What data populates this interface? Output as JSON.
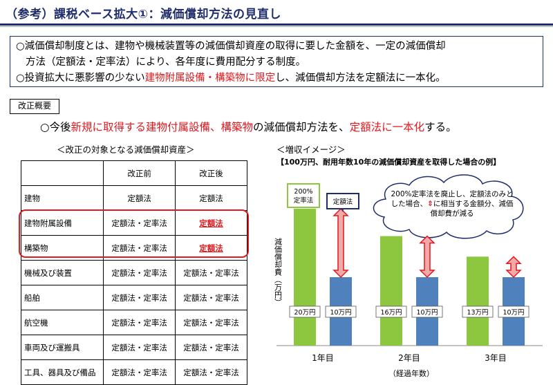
{
  "title": "（参考）課税ベース拡大①：減価償却方法の見直し",
  "summary": {
    "line1": "○減価償却制度とは、建物や機械装置等の減価償却資産の取得に要した金額を、一定の減価償却",
    "line2": "方法（定額法・定率法）により、各年度に費用配分する制度。",
    "line3_pre": "○投資拡大に悪影響の少ない",
    "line3_red": "建物附属設備・構築物に限定",
    "line3_post": "し、減価償却方法を定額法に一本化。"
  },
  "kaisei_label": "改正概要",
  "bigline": {
    "p1": "○今後",
    "p2": "新規に取得する建物付属設備、構築物",
    "p3": "の減価償却方法を、",
    "p4": "定額法に一本化",
    "p5": "する。"
  },
  "table": {
    "caption": "＜改正の対象となる減価償却資産＞",
    "headers": [
      "",
      "改正前",
      "改正後"
    ],
    "rows": [
      {
        "name": "建物",
        "before": "定額法",
        "after": "定額法",
        "changed": false
      },
      {
        "name": "建物附属設備",
        "before": "定額法・定率法",
        "after": "定額法",
        "changed": true
      },
      {
        "name": "構築物",
        "before": "定額法・定率法",
        "after": "定額法",
        "changed": true
      },
      {
        "name": "機械及び装置",
        "before": "定額法・定率法",
        "after": "定額法・定率法",
        "changed": false
      },
      {
        "name": "船舶",
        "before": "定額法・定率法",
        "after": "定額法・定率法",
        "changed": false
      },
      {
        "name": "航空機",
        "before": "定額法・定率法",
        "after": "定額法・定率法",
        "changed": false
      },
      {
        "name": "車両及び運搬具",
        "before": "定額法・定率法",
        "after": "定額法・定率法",
        "changed": false
      },
      {
        "name": "工具、器具及び備品",
        "before": "定額法・定率法",
        "after": "定額法・定率法",
        "changed": false
      }
    ]
  },
  "chart_data": {
    "type": "bar",
    "title": "＜増収イメージ＞",
    "subtitle": "【100万円、耐用年数10年の減価償却資産を取得した場合の例】",
    "ylabel": "減価償却費（万円）",
    "xlabel": "（経過年数）",
    "categories": [
      "1年目",
      "2年目",
      "3年目"
    ],
    "series": [
      {
        "name": "200%定率法",
        "color": "#8dc63f",
        "values": [
          20,
          16,
          13
        ],
        "labels": [
          "20万円",
          "16万円",
          "13万円"
        ]
      },
      {
        "name": "定額法",
        "color": "#4f81bd",
        "values": [
          10,
          10,
          10
        ],
        "labels": [
          "10万円",
          "10万円",
          "10万円"
        ]
      }
    ],
    "ylim": [
      0,
      26
    ],
    "legend": {
      "green": "200%\n定率法",
      "blue": "定額法"
    },
    "note": "200%定率法を廃止し、定額法のみとした場合、⇕に相当する金額分、減価償却費が減る"
  }
}
